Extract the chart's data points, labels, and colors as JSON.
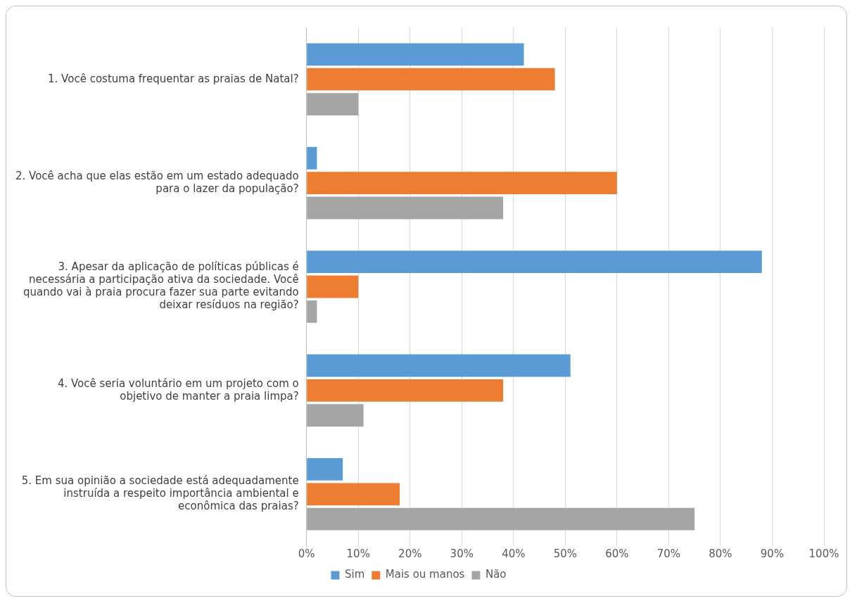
{
  "chart_data": {
    "type": "bar",
    "orientation": "horizontal",
    "categories": [
      "1. Você costuma frequentar as praias de Natal?",
      "2. Você acha que elas estão em um estado adequado para o lazer da população?",
      "3. Apesar da aplicação de políticas públicas é necessária a participação ativa da sociedade. Você quando vai à praia procura fazer sua parte evitando deixar resíduos na região?",
      "4. Você seria voluntário em um projeto com o objetivo de manter a praia limpa?",
      "5. Em sua opinião a sociedade está adequadamente instruída a respeito importância ambiental e econômica das praias?"
    ],
    "series": [
      {
        "name": "Sim",
        "color": "#5b9bd5",
        "values": [
          42,
          2,
          88,
          51,
          7
        ]
      },
      {
        "name": "Mais ou manos",
        "color": "#ed7d31",
        "values": [
          48,
          60,
          10,
          38,
          18
        ]
      },
      {
        "name": "Não",
        "color": "#a5a5a5",
        "values": [
          10,
          38,
          2,
          11,
          75
        ]
      }
    ],
    "xlim": [
      0,
      100
    ],
    "xticks": [
      {
        "value": 0,
        "label": "0%"
      },
      {
        "value": 10,
        "label": "10%"
      },
      {
        "value": 20,
        "label": "20%"
      },
      {
        "value": 30,
        "label": "30%"
      },
      {
        "value": 40,
        "label": "40%"
      },
      {
        "value": 50,
        "label": "50%"
      },
      {
        "value": 60,
        "label": "60%"
      },
      {
        "value": 70,
        "label": "70%"
      },
      {
        "value": 80,
        "label": "80%"
      },
      {
        "value": 90,
        "label": "90%"
      },
      {
        "value": 100,
        "label": "100%"
      }
    ],
    "grid": "x",
    "legend": "bottom"
  }
}
